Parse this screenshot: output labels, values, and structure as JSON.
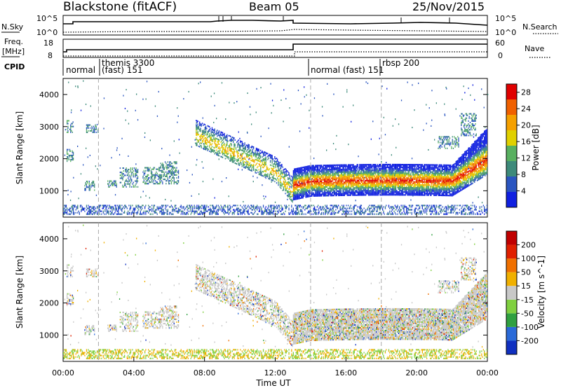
{
  "header": {
    "station": "Blackstone (fitACF)",
    "beam": "Beam 05",
    "date": "25/Nov/2015"
  },
  "noise_panel": {
    "left_label": "N.Sky",
    "right_label": "N.Search",
    "left_ticks": [
      "10^5",
      "10^0"
    ],
    "right_ticks": [
      "10^5",
      "10^0"
    ]
  },
  "freq_panel": {
    "left_label_1": "Freq.",
    "left_label_2": "[MHz]",
    "right_label": "Nave",
    "left_ticks": [
      "18",
      "8"
    ],
    "right_ticks": [
      "60",
      "0"
    ]
  },
  "cpid": {
    "label": "CPID",
    "segments": [
      {
        "start_hour": 0,
        "top": "",
        "bottom": "normal"
      },
      {
        "start_hour": 2,
        "top": "themis 3300",
        "bottom": "(fast) 151"
      },
      {
        "start_hour": 14,
        "top": "",
        "bottom": "normal (fast) 151"
      },
      {
        "start_hour": 18,
        "top": "rbsp 200",
        "bottom": ""
      }
    ]
  },
  "time_axis": {
    "label": "Time UT",
    "ticks": [
      "00:00",
      "04:00",
      "08:00",
      "12:00",
      "16:00",
      "20:00",
      "00:00"
    ]
  },
  "chart_data": [
    {
      "type": "heatmap",
      "title": "",
      "ylabel": "Slant Range [km]",
      "xlabel": "Time UT",
      "xlim_hours": [
        0,
        24
      ],
      "ylim": [
        180,
        4500
      ],
      "yticks": [
        1000,
        2000,
        3000,
        4000
      ],
      "colorbar": {
        "label": "Power [dB]",
        "ticks": [
          "4",
          "8",
          "12",
          "16",
          "20",
          "24",
          "28"
        ],
        "range": [
          0,
          30
        ],
        "colors": [
          "#1020e0",
          "#2a55c0",
          "#3d8a7a",
          "#58b060",
          "#e0d000",
          "#f5a000",
          "#f06000",
          "#e00000"
        ]
      },
      "features": [
        {
          "name": "main band",
          "time_hours": [
            13,
            24
          ],
          "range_km": [
            800,
            1900
          ],
          "peak_dB": 28
        },
        {
          "name": "descending echo",
          "time_hours": [
            7.5,
            13
          ],
          "range_km": [
            900,
            3200
          ],
          "peak_dB": 20
        },
        {
          "name": "near-range clutter",
          "time_hours": [
            0,
            24
          ],
          "range_km": [
            250,
            550
          ],
          "peak_dB": 8
        }
      ]
    },
    {
      "type": "heatmap",
      "title": "",
      "ylabel": "Slant Range [km]",
      "xlabel": "Time UT",
      "xlim_hours": [
        0,
        24
      ],
      "ylim": [
        180,
        4500
      ],
      "yticks": [
        1000,
        2000,
        3000,
        4000
      ],
      "colorbar": {
        "label": "Velocity [m s^-1]",
        "ticks": [
          "200",
          "100",
          "50",
          "15",
          "-15",
          "-50",
          "-100",
          "-200"
        ],
        "range": [
          -250,
          250
        ],
        "colors": [
          "#1030c0",
          "#2a6ad8",
          "#30a040",
          "#80d040",
          "#c8c8c8",
          "#f0b000",
          "#f07000",
          "#e02000",
          "#c00000"
        ]
      }
    }
  ]
}
